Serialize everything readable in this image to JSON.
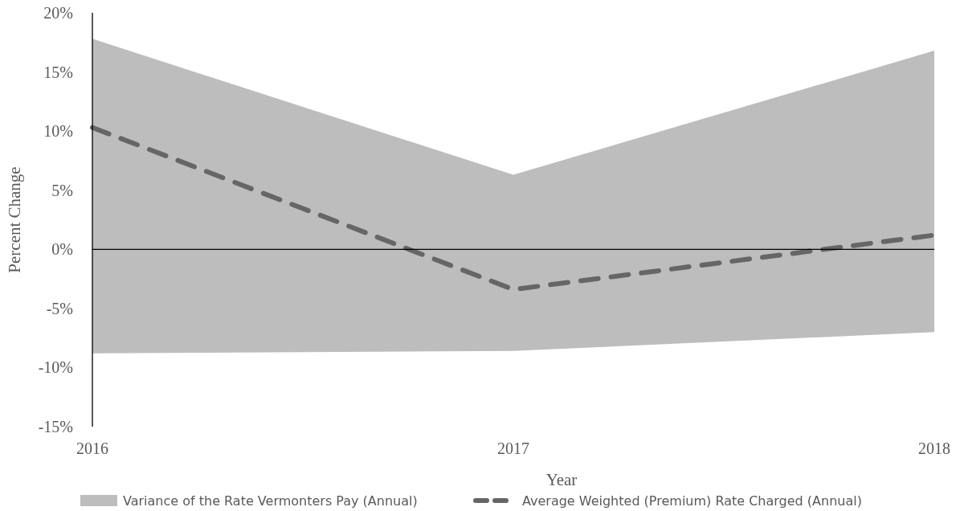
{
  "chart_data": {
    "type": "line",
    "xlabel": "Year",
    "ylabel": "Percent Change",
    "categories": [
      "2016",
      "2017",
      "2018"
    ],
    "series": [
      {
        "name": "Variance of the Rate Vermonters Pay (Annual)",
        "type": "area",
        "color": "#bdbdbd",
        "values": [
          null,
          null,
          null
        ],
        "lower": [
          -8.8,
          -8.6,
          -7.0
        ],
        "upper": [
          17.8,
          6.3,
          16.8
        ]
      },
      {
        "name": "Average Weighted (Premium) Rate Charged (Annual)",
        "type": "line",
        "color": "#666666",
        "line_style": "dashed",
        "values": [
          10.3,
          -3.4,
          1.2
        ]
      }
    ],
    "ylim": [
      -15,
      20
    ],
    "yticks": [
      {
        "value": -15,
        "label": "-15%"
      },
      {
        "value": -10,
        "label": "-10%"
      },
      {
        "value": -5,
        "label": "-5%"
      },
      {
        "value": 0,
        "label": "0%"
      },
      {
        "value": 5,
        "label": "5%"
      },
      {
        "value": 10,
        "label": "10%"
      },
      {
        "value": 15,
        "label": "15%"
      },
      {
        "value": 20,
        "label": "20%"
      }
    ],
    "legend": "bottom"
  }
}
